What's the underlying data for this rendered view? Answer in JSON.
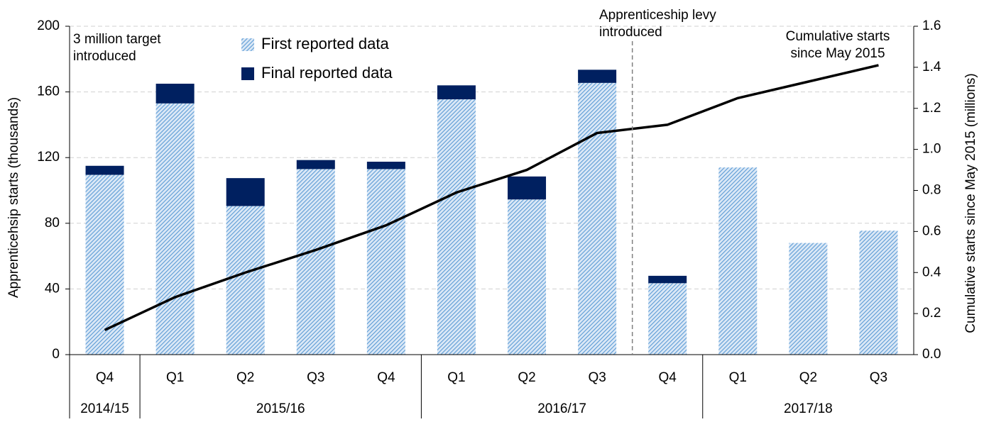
{
  "chart_data": {
    "type": "bar",
    "y_label": "Apprenticehsip starts (thousands)",
    "y2_label": "Cumulative starts since May 2015  (millions)",
    "categories": [
      "Q4",
      "Q1",
      "Q2",
      "Q3",
      "Q4",
      "Q1",
      "Q2",
      "Q3",
      "Q4",
      "Q1",
      "Q2",
      "Q3"
    ],
    "category_years": [
      "2014/15",
      "2015/16",
      "2015/16",
      "2015/16",
      "2015/16",
      "2016/17",
      "2016/17",
      "2016/17",
      "2016/17",
      "2017/18",
      "2017/18",
      "2017/18"
    ],
    "stacked": true,
    "series": [
      {
        "name": "First reported data",
        "color": "#5b9bd5",
        "pattern": "hatch",
        "values": [
          109.5,
          153,
          90.5,
          113,
          113,
          155.5,
          94.5,
          165.5,
          43.5,
          114,
          68,
          75.5
        ]
      },
      {
        "name": "Final reported data",
        "color": "#002060",
        "values": [
          5.5,
          12,
          17,
          5.5,
          4.5,
          8.5,
          14,
          8,
          4.5,
          null,
          null,
          null
        ]
      },
      {
        "name": "Cumulative starts since May 2015",
        "type": "line",
        "axis": "y2",
        "color": "#000000",
        "values": [
          0.12,
          0.28,
          0.4,
          0.51,
          0.63,
          0.79,
          0.9,
          1.08,
          1.12,
          1.25,
          1.33,
          1.41
        ]
      }
    ],
    "ylim": [
      0,
      200
    ],
    "yticks": [
      0,
      40,
      80,
      120,
      160,
      200
    ],
    "y2lim": [
      0,
      1.6
    ],
    "y2ticks": [
      {
        "value": 0,
        "label": "0.0"
      },
      {
        "value": 0.2,
        "label": "0.2"
      },
      {
        "value": 0.4,
        "label": "0.4"
      },
      {
        "value": 0.6,
        "label": "0.6"
      },
      {
        "value": 0.8,
        "label": "0.8"
      },
      {
        "value": 1,
        "label": "1.0"
      },
      {
        "value": 1.2,
        "label": "1.2"
      },
      {
        "value": 1.4,
        "label": "1.4"
      },
      {
        "value": 1.6,
        "label": "1.6"
      }
    ],
    "grid": true,
    "annotations": [
      {
        "lines": [
          "3 million target",
          "introduced"
        ]
      },
      {
        "lines": [
          "Apprenticeship levy",
          "introduced"
        ]
      },
      {
        "lines": [
          "Cumulative starts",
          "since May 2015"
        ]
      }
    ]
  }
}
